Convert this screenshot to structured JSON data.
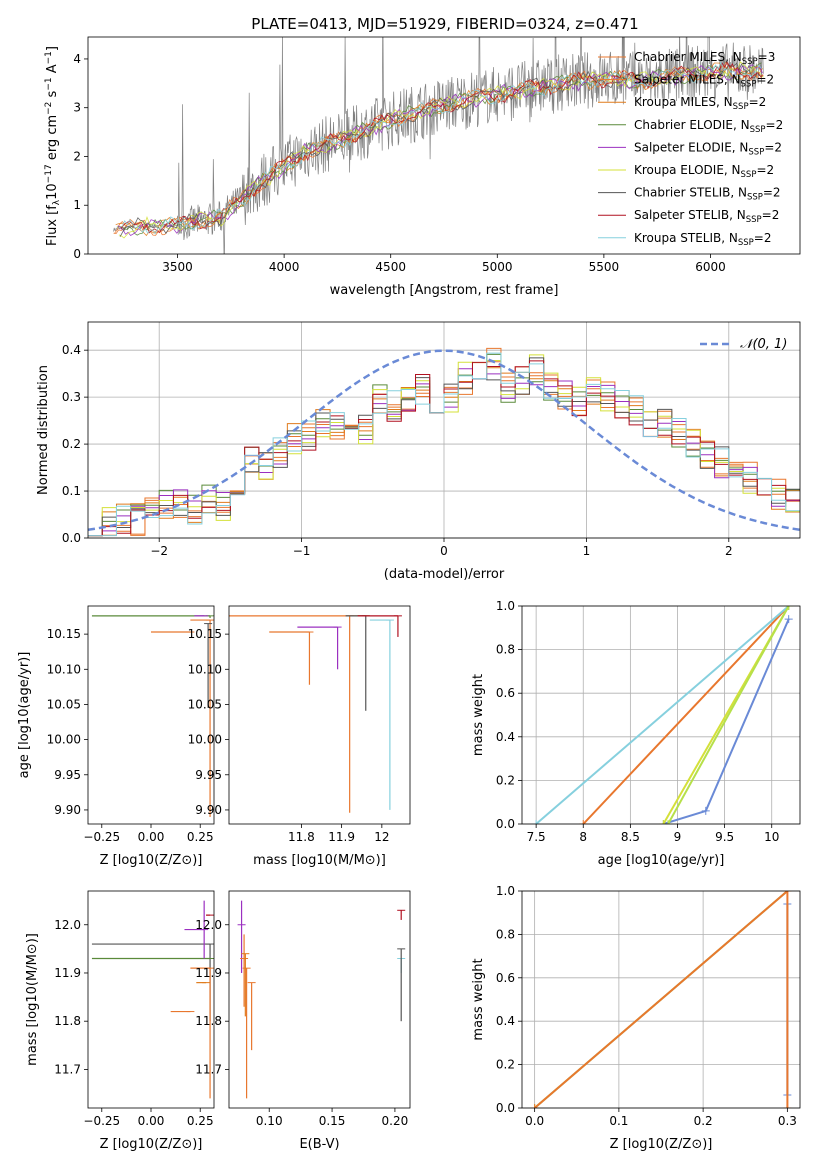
{
  "title": "PLATE=0413, MJD=51929, FIBERID=0324, z=0.471",
  "colors": {
    "grid": "#b0b0b0",
    "spectrum": "#808080",
    "normal_curve": "#6a8ad6",
    "models": [
      "#e8772e",
      "#e8772e",
      "#e07b1c",
      "#5a8a3a",
      "#9b30c0",
      "#d4e03a",
      "#555555",
      "#b01020",
      "#86d0de"
    ],
    "series_main": [
      "#6a8ad6",
      "#e8772e",
      "#d4e03a",
      "#86d0de",
      "#b6e04a"
    ]
  },
  "chart_data": [
    {
      "id": "spectrum",
      "type": "line",
      "xlabel": "wavelength [Angstrom, rest frame]",
      "ylabel": "Flux [f_λ 10^-17 erg cm^-2 s^-1 A^-1]",
      "xlim": [
        3080,
        6420
      ],
      "ylim": [
        0,
        4.45
      ],
      "xticks": [
        3500,
        4000,
        4500,
        5000,
        5500,
        6000
      ],
      "yticks": [
        0,
        1,
        2,
        3,
        4
      ],
      "envelope": {
        "x": [
          3200,
          3300,
          3500,
          3700,
          3900,
          4100,
          4300,
          4500,
          4700,
          4900,
          5100,
          5300,
          5500,
          5700,
          5900,
          6100,
          6250
        ],
        "y": [
          0.5,
          0.55,
          0.6,
          0.75,
          1.5,
          2.1,
          2.4,
          2.75,
          3.0,
          3.2,
          3.35,
          3.5,
          3.6,
          3.55,
          3.7,
          3.75,
          3.75
        ]
      },
      "legend": [
        {
          "label": "Chabrier MILES, N",
          "sub": "SSP",
          "suffix": "=3"
        },
        {
          "label": "Salpeter MILES, N",
          "sub": "SSP",
          "suffix": "=2"
        },
        {
          "label": "Kroupa MILES, N",
          "sub": "SSP",
          "suffix": "=2"
        },
        {
          "label": "Chabrier ELODIE, N",
          "sub": "SSP",
          "suffix": "=2"
        },
        {
          "label": "Salpeter ELODIE, N",
          "sub": "SSP",
          "suffix": "=2"
        },
        {
          "label": "Kroupa ELODIE, N",
          "sub": "SSP",
          "suffix": "=2"
        },
        {
          "label": "Chabrier STELIB, N",
          "sub": "SSP",
          "suffix": "=2"
        },
        {
          "label": "Salpeter STELIB, N",
          "sub": "SSP",
          "suffix": "=2"
        },
        {
          "label": "Kroupa STELIB, N",
          "sub": "SSP",
          "suffix": "=2"
        }
      ]
    },
    {
      "id": "residuals",
      "type": "line",
      "xlabel": "(data-model)/error",
      "ylabel": "Normed distribution",
      "xlim": [
        -2.5,
        2.5
      ],
      "ylim": [
        0,
        0.46
      ],
      "xticks": [
        -2,
        -1,
        0,
        1,
        2
      ],
      "yticks": [
        0.0,
        0.1,
        0.2,
        0.3,
        0.4
      ],
      "legend": "𝒩(0, 1)",
      "hist_bins": [
        -2.5,
        2.5,
        50
      ],
      "hist": [
        0.03,
        0.03,
        0.04,
        0.04,
        0.06,
        0.07,
        0.07,
        0.06,
        0.08,
        0.07,
        0.12,
        0.16,
        0.15,
        0.18,
        0.21,
        0.22,
        0.25,
        0.24,
        0.26,
        0.23,
        0.3,
        0.28,
        0.3,
        0.32,
        0.28,
        0.3,
        0.34,
        0.36,
        0.37,
        0.32,
        0.34,
        0.36,
        0.32,
        0.3,
        0.29,
        0.31,
        0.3,
        0.28,
        0.27,
        0.25,
        0.24,
        0.22,
        0.2,
        0.18,
        0.16,
        0.14,
        0.13,
        0.11,
        0.09,
        0.08
      ]
    },
    {
      "id": "age-vs-Z",
      "type": "scatter",
      "xlabel": "Z [log10(Z/Z⊙)]",
      "ylabel": "age [log10(age/yr)]",
      "xlim": [
        -0.32,
        0.32
      ],
      "ylim": [
        9.88,
        10.19
      ],
      "xticks": [
        -0.25,
        0.0,
        0.25
      ],
      "xtick_labels": [
        "−0.25",
        "0.00",
        "0.25"
      ],
      "yticks": [
        9.9,
        9.95,
        10.0,
        10.05,
        10.1,
        10.15
      ],
      "points": [
        {
          "x": 0.2,
          "y": 10.153,
          "xerr": [
            0.2,
            0.0
          ],
          "yerr": [
            0,
            0
          ],
          "c": 0
        },
        {
          "x": 0.3,
          "y": 10.176,
          "xerr": [
            0.6,
            0.0
          ],
          "yerr": [
            0.003,
            0.0
          ],
          "c": 3
        },
        {
          "x": 0.3,
          "y": 10.17,
          "xerr": [
            0.1,
            0.0
          ],
          "yerr": [
            0.28,
            0.0
          ],
          "c": 1
        },
        {
          "x": 0.29,
          "y": 10.165,
          "xerr": [
            0.0,
            0.0
          ],
          "yerr": [
            0.12,
            0.0
          ],
          "c": 6
        },
        {
          "x": 0.27,
          "y": 10.176,
          "xerr": [
            0.05,
            0.0
          ],
          "yerr": [
            0,
            0
          ],
          "c": 4
        }
      ]
    },
    {
      "id": "age-vs-mass",
      "type": "scatter",
      "xlabel": "mass [log10(M/M⊙)]",
      "ylabel": "",
      "xlim": [
        11.62,
        12.07
      ],
      "ylim": [
        9.88,
        10.19
      ],
      "xticks": [
        11.8,
        11.9,
        12.0
      ],
      "yticks": [
        9.9,
        9.95,
        10.0,
        10.05,
        10.1,
        10.15
      ],
      "points": [
        {
          "x": 11.82,
          "y": 10.153,
          "xerr": [
            0.1,
            0.0
          ],
          "yerr": [
            0.075,
            0.0
          ],
          "c": 0
        },
        {
          "x": 11.92,
          "y": 10.176,
          "xerr": [
            0.3,
            0.05
          ],
          "yerr": [
            0.28,
            0.0
          ],
          "c": 1
        },
        {
          "x": 11.96,
          "y": 10.176,
          "xerr": [
            0.05,
            0.0
          ],
          "yerr": [
            0.135,
            0.0
          ],
          "c": 6
        },
        {
          "x": 12.04,
          "y": 10.176,
          "xerr": [
            0.1,
            0.0
          ],
          "yerr": [
            0.03,
            0.0
          ],
          "c": 7
        },
        {
          "x": 12.02,
          "y": 10.17,
          "xerr": [
            0.05,
            0.0
          ],
          "yerr": [
            0.27,
            0.0
          ],
          "c": 8
        },
        {
          "x": 11.89,
          "y": 10.16,
          "xerr": [
            0.1,
            0.0
          ],
          "yerr": [
            0.06,
            0.0
          ],
          "c": 4
        }
      ]
    },
    {
      "id": "mass-weight-vs-age",
      "type": "line",
      "xlabel": "age [log10(age/yr)]",
      "ylabel": "mass weight",
      "xlim": [
        7.35,
        10.3
      ],
      "ylim": [
        0,
        1
      ],
      "xticks": [
        7.5,
        8.0,
        8.5,
        9.0,
        9.5,
        10.0
      ],
      "yticks": [
        0.0,
        0.2,
        0.4,
        0.6,
        0.8,
        1.0
      ],
      "series": [
        {
          "x": [
            8.85,
            9.3,
            10.18
          ],
          "y": [
            0.0,
            0.06,
            0.94
          ],
          "c": 0
        },
        {
          "x": [
            8.0,
            10.18
          ],
          "y": [
            0.0,
            1.0
          ],
          "c": 1
        },
        {
          "x": [
            8.85,
            10.18
          ],
          "y": [
            0.0,
            1.0
          ],
          "c": 2
        },
        {
          "x": [
            7.5,
            10.18
          ],
          "y": [
            0.0,
            1.0
          ],
          "c": 3
        },
        {
          "x": [
            8.9,
            10.18
          ],
          "y": [
            0.0,
            1.0
          ],
          "c": 4
        }
      ]
    },
    {
      "id": "mass-vs-Z",
      "type": "scatter",
      "xlabel": "Z [log10(Z/Z⊙)]",
      "ylabel": "mass [log10(M/M⊙)]",
      "xlim": [
        -0.32,
        0.32
      ],
      "ylim": [
        11.62,
        12.07
      ],
      "xticks": [
        -0.25,
        0.0,
        0.25
      ],
      "xtick_labels": [
        "−0.25",
        "0.00",
        "0.25"
      ],
      "yticks": [
        11.7,
        11.8,
        11.9,
        12.0
      ],
      "points": [
        {
          "x": 0.3,
          "y": 11.96,
          "xerr": [
            0.6,
            0.0
          ],
          "yerr": [
            0.16,
            0.0
          ],
          "c": 6
        },
        {
          "x": 0.3,
          "y": 11.93,
          "xerr": [
            0.6,
            0.0
          ],
          "yerr": [
            0,
            0
          ],
          "c": 3
        },
        {
          "x": 0.3,
          "y": 11.91,
          "xerr": [
            0.1,
            0.0
          ],
          "yerr": [
            0.27,
            0.0
          ],
          "c": 1
        },
        {
          "x": 0.2,
          "y": 11.82,
          "xerr": [
            0.1,
            0.0
          ],
          "yerr": [
            0,
            0
          ],
          "c": 0
        },
        {
          "x": 0.27,
          "y": 11.99,
          "xerr": [
            0.1,
            0.0
          ],
          "yerr": [
            0.06,
            0.06
          ],
          "c": 4
        },
        {
          "x": 0.28,
          "y": 11.88,
          "xerr": [
            0.05,
            0.0
          ],
          "yerr": [
            0,
            0
          ],
          "c": 2
        },
        {
          "x": 0.3,
          "y": 12.02,
          "xerr": [
            0.02,
            0.0
          ],
          "yerr": [
            0,
            0
          ],
          "c": 7
        }
      ]
    },
    {
      "id": "mass-vs-ebv",
      "type": "scatter",
      "xlabel": "E(B-V)",
      "ylabel": "",
      "xlim": [
        0.068,
        0.212
      ],
      "ylim": [
        11.62,
        12.07
      ],
      "xticks": [
        0.1,
        0.15,
        0.2
      ],
      "xtick_labels": [
        "0.10",
        "0.15",
        "0.20"
      ],
      "yticks": [
        11.7,
        11.8,
        11.9,
        12.0
      ],
      "points": [
        {
          "x": 0.078,
          "y": 12.0,
          "xerr": [
            0,
            0
          ],
          "yerr": [
            0.1,
            0.05
          ],
          "c": 4
        },
        {
          "x": 0.08,
          "y": 11.93,
          "xerr": [
            0,
            0
          ],
          "yerr": [
            0.1,
            0.05
          ],
          "c": 0
        },
        {
          "x": 0.082,
          "y": 11.91,
          "xerr": [
            0,
            0
          ],
          "yerr": [
            0.27,
            0.0
          ],
          "c": 1
        },
        {
          "x": 0.086,
          "y": 11.88,
          "xerr": [
            0,
            0
          ],
          "yerr": [
            0.14,
            0.0
          ],
          "c": 0
        },
        {
          "x": 0.081,
          "y": 11.94,
          "xerr": [
            0,
            0
          ],
          "yerr": [
            0.13,
            0.0
          ],
          "c": 2
        },
        {
          "x": 0.205,
          "y": 12.03,
          "xerr": [
            0,
            0
          ],
          "yerr": [
            0.02,
            0.0
          ],
          "c": 7
        },
        {
          "x": 0.205,
          "y": 11.93,
          "xerr": [
            0,
            0
          ],
          "yerr": [
            0.03,
            0.0
          ],
          "c": 8
        },
        {
          "x": 0.205,
          "y": 11.95,
          "xerr": [
            0,
            0
          ],
          "yerr": [
            0.15,
            0.0
          ],
          "c": 6
        }
      ]
    },
    {
      "id": "mass-weight-vs-Z",
      "type": "line",
      "xlabel": "Z [log10(Z/Z⊙)]",
      "ylabel": "mass weight",
      "xlim": [
        -0.015,
        0.315
      ],
      "ylim": [
        0,
        1
      ],
      "xticks": [
        0.0,
        0.1,
        0.2,
        0.3
      ],
      "xtick_labels": [
        "0.0",
        "0.1",
        "0.2",
        "0.3"
      ],
      "yticks": [
        0.0,
        0.2,
        0.4,
        0.6,
        0.8,
        1.0
      ],
      "series": [
        {
          "x": [
            0.0,
            0.3
          ],
          "y": [
            0.0,
            1.0
          ],
          "c": 3
        },
        {
          "x": [
            0.0,
            0.3
          ],
          "y": [
            0.0,
            1.0
          ],
          "c": 4
        },
        {
          "x": [
            0.0,
            0.3
          ],
          "y": [
            0.0,
            1.0
          ],
          "c": 1
        },
        {
          "x": [
            0.3,
            0.3
          ],
          "y": [
            0.06,
            0.94
          ],
          "c": 0
        },
        {
          "x": [
            0.3,
            0.3
          ],
          "y": [
            0.0,
            1.0
          ],
          "c": 1
        }
      ]
    }
  ]
}
